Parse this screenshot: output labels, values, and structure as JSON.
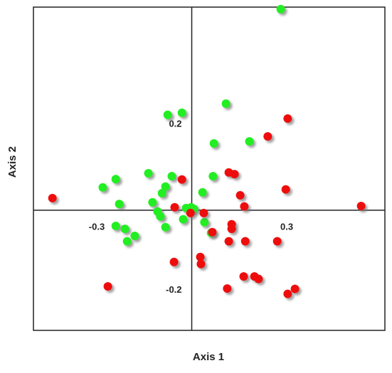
{
  "chart_data": {
    "type": "scatter",
    "x_label": "Axis 1",
    "y_label": "Axis 2",
    "xlim": [
      -0.5,
      0.61
    ],
    "ylim": [
      -0.29,
      0.49
    ],
    "xticks": [
      -0.3,
      0.3
    ],
    "yticks": [
      0.2,
      -0.2
    ],
    "series": [
      {
        "color": "#22ee22",
        "x": [
          0.281,
          0.108,
          -0.076,
          -0.031,
          0.07,
          0.182,
          -0.137,
          -0.063,
          -0.24,
          -0.281,
          0.067,
          -0.083,
          -0.094,
          -0.229,
          -0.124,
          0.034,
          -0.108,
          -0.099,
          -0.018,
          -0.002,
          0.007,
          0.04,
          -0.083,
          -0.24,
          -0.211,
          -0.18,
          -0.204,
          0.061,
          -0.027
        ],
        "values": [
          0.485,
          0.257,
          0.23,
          0.235,
          0.161,
          0.166,
          0.089,
          0.082,
          0.075,
          0.055,
          0.082,
          0.057,
          0.041,
          0.015,
          0.019,
          0.043,
          -0.003,
          -0.015,
          0.005,
          0.007,
          0.003,
          -0.029,
          -0.041,
          -0.038,
          -0.045,
          -0.062,
          -0.075,
          -0.055,
          -0.022
        ]
      },
      {
        "color": "#ee1111",
        "x": [
          0.303,
          0.24,
          -0.031,
          0.117,
          0.135,
          -0.44,
          0.153,
          0.166,
          0.297,
          0.535,
          -0.054,
          0.038,
          -0.004,
          0.065,
          0.126,
          0.126,
          0.117,
          0.169,
          0.27,
          0.027,
          0.029,
          -0.056,
          -0.265,
          0.112,
          0.164,
          0.198,
          0.211,
          0.303,
          0.326
        ],
        "values": [
          0.221,
          0.178,
          0.074,
          0.091,
          0.087,
          0.029,
          0.036,
          0.009,
          0.05,
          0.01,
          0.007,
          -0.007,
          -0.007,
          -0.053,
          -0.034,
          -0.045,
          -0.075,
          -0.075,
          -0.075,
          -0.113,
          -0.13,
          -0.125,
          -0.184,
          -0.189,
          -0.16,
          -0.16,
          -0.166,
          -0.202,
          -0.19
        ]
      }
    ]
  }
}
